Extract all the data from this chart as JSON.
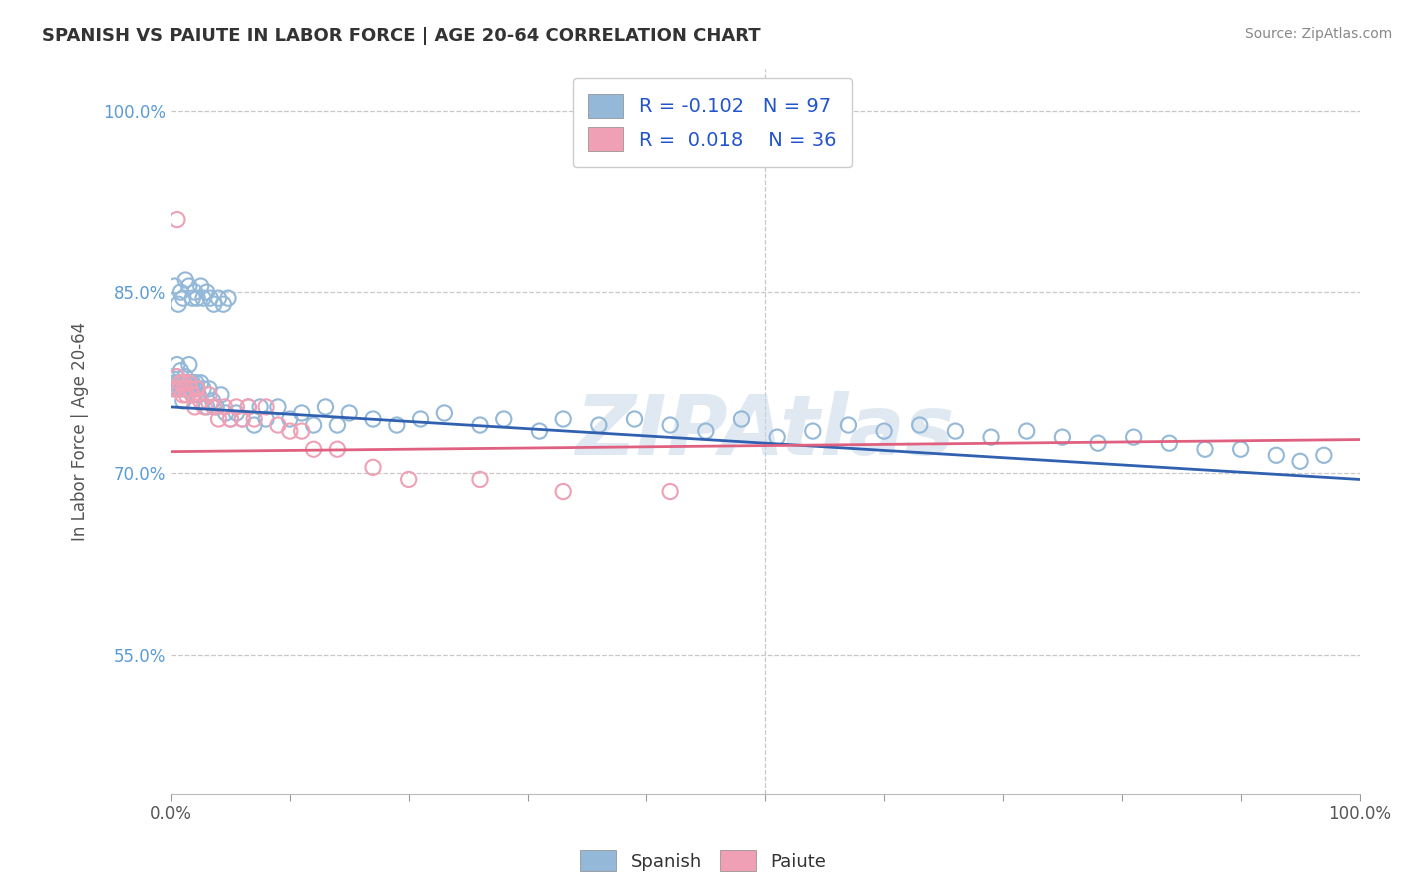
{
  "title": "SPANISH VS PAIUTE IN LABOR FORCE | AGE 20-64 CORRELATION CHART",
  "source": "Source: ZipAtlas.com",
  "ylabel": "In Labor Force | Age 20-64",
  "xlim": [
    0.0,
    1.0
  ],
  "ylim": [
    0.435,
    1.035
  ],
  "xticks": [
    0.0,
    0.1,
    0.2,
    0.3,
    0.4,
    0.5,
    0.6,
    0.7,
    0.8,
    0.9,
    1.0
  ],
  "xtick_labels_show": [
    "0.0%",
    "",
    "",
    "",
    "",
    "",
    "",
    "",
    "",
    "",
    "100.0%"
  ],
  "yticks": [
    0.55,
    0.7,
    0.85,
    1.0
  ],
  "ytick_labels": [
    "55.0%",
    "70.0%",
    "85.0%",
    "100.0%"
  ],
  "watermark": "ZIPAtlas",
  "legend_r_spanish": "-0.102",
  "legend_n_spanish": "97",
  "legend_r_paiute": "0.018",
  "legend_n_paiute": "36",
  "spanish_color": "#93b8d8",
  "paiute_color": "#f0a0b5",
  "trend_spanish_color": "#3060b0",
  "trend_paiute_color": "#e06080",
  "background_color": "#ffffff",
  "grid_color": "#c8c8c8",
  "spanish_line_start": 0.755,
  "spanish_line_end": 0.695,
  "paiute_line_start": 0.718,
  "paiute_line_end": 0.728,
  "spanish_x": [
    0.002,
    0.003,
    0.004,
    0.005,
    0.005,
    0.006,
    0.007,
    0.008,
    0.008,
    0.009,
    0.01,
    0.01,
    0.011,
    0.012,
    0.012,
    0.013,
    0.014,
    0.015,
    0.015,
    0.016,
    0.017,
    0.018,
    0.019,
    0.02,
    0.021,
    0.022,
    0.023,
    0.025,
    0.027,
    0.03,
    0.032,
    0.035,
    0.038,
    0.042,
    0.046,
    0.05,
    0.055,
    0.06,
    0.065,
    0.07,
    0.075,
    0.08,
    0.09,
    0.1,
    0.11,
    0.12,
    0.13,
    0.14,
    0.15,
    0.17,
    0.19,
    0.21,
    0.23,
    0.26,
    0.28,
    0.31,
    0.33,
    0.36,
    0.39,
    0.42,
    0.45,
    0.48,
    0.51,
    0.54,
    0.57,
    0.6,
    0.63,
    0.66,
    0.69,
    0.72,
    0.75,
    0.78,
    0.81,
    0.84,
    0.87,
    0.9,
    0.93,
    0.95,
    0.97,
    0.003,
    0.006,
    0.008,
    0.01,
    0.012,
    0.015,
    0.018,
    0.02,
    0.022,
    0.025,
    0.027,
    0.03,
    0.033,
    0.036,
    0.04,
    0.044,
    0.048,
    0.38
  ],
  "spanish_y": [
    0.77,
    0.775,
    0.78,
    0.77,
    0.79,
    0.775,
    0.77,
    0.775,
    0.785,
    0.77,
    0.76,
    0.775,
    0.77,
    0.78,
    0.775,
    0.77,
    0.775,
    0.77,
    0.79,
    0.775,
    0.77,
    0.775,
    0.765,
    0.77,
    0.775,
    0.77,
    0.765,
    0.775,
    0.77,
    0.755,
    0.77,
    0.76,
    0.755,
    0.765,
    0.75,
    0.745,
    0.75,
    0.745,
    0.755,
    0.74,
    0.755,
    0.745,
    0.755,
    0.745,
    0.75,
    0.74,
    0.755,
    0.74,
    0.75,
    0.745,
    0.74,
    0.745,
    0.75,
    0.74,
    0.745,
    0.735,
    0.745,
    0.74,
    0.745,
    0.74,
    0.735,
    0.745,
    0.73,
    0.735,
    0.74,
    0.735,
    0.74,
    0.735,
    0.73,
    0.735,
    0.73,
    0.725,
    0.73,
    0.725,
    0.72,
    0.72,
    0.715,
    0.71,
    0.715,
    0.855,
    0.84,
    0.85,
    0.845,
    0.86,
    0.855,
    0.845,
    0.85,
    0.845,
    0.855,
    0.845,
    0.85,
    0.845,
    0.84,
    0.845,
    0.84,
    0.845,
    1.005
  ],
  "paiute_x": [
    0.003,
    0.005,
    0.007,
    0.008,
    0.01,
    0.011,
    0.012,
    0.013,
    0.015,
    0.016,
    0.018,
    0.02,
    0.022,
    0.025,
    0.028,
    0.032,
    0.036,
    0.04,
    0.045,
    0.05,
    0.055,
    0.06,
    0.065,
    0.07,
    0.08,
    0.09,
    0.1,
    0.11,
    0.12,
    0.14,
    0.17,
    0.2,
    0.26,
    0.33,
    0.42,
    0.005
  ],
  "paiute_y": [
    0.77,
    0.78,
    0.77,
    0.775,
    0.765,
    0.775,
    0.77,
    0.765,
    0.775,
    0.77,
    0.765,
    0.755,
    0.77,
    0.76,
    0.755,
    0.765,
    0.755,
    0.745,
    0.755,
    0.745,
    0.755,
    0.745,
    0.755,
    0.745,
    0.755,
    0.74,
    0.735,
    0.735,
    0.72,
    0.72,
    0.705,
    0.695,
    0.695,
    0.685,
    0.685,
    0.91
  ]
}
